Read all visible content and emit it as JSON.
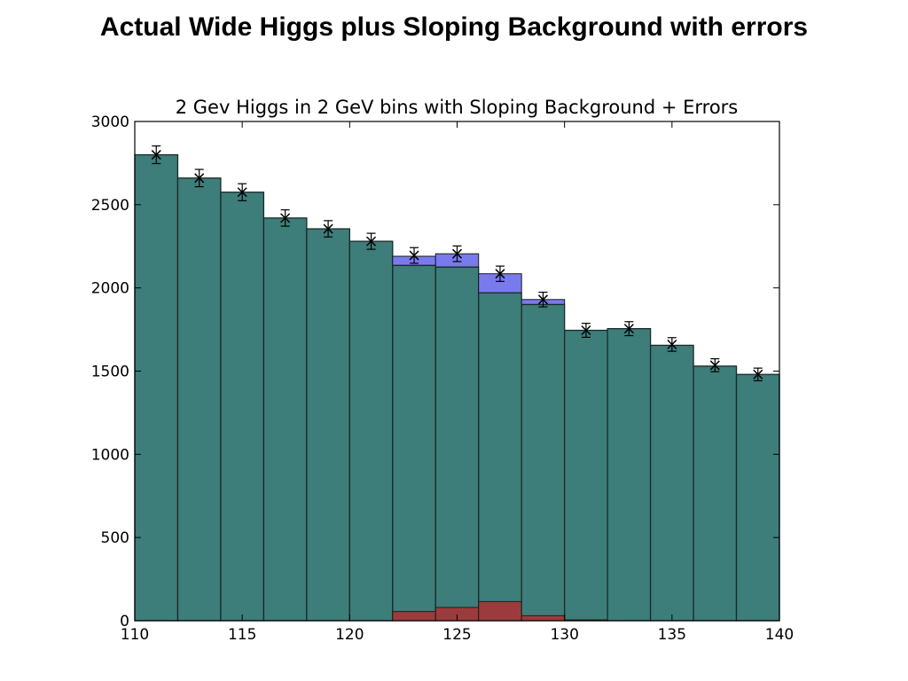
{
  "slide": {
    "title": "Actual Wide Higgs plus Sloping Background with errors"
  },
  "chart_data": {
    "type": "bar",
    "title": "2 Gev Higgs in 2 GeV bins with Sloping Background + Errors",
    "xlabel": "",
    "ylabel": "",
    "xlim": [
      110,
      140
    ],
    "ylim": [
      0,
      3000
    ],
    "xticks": [
      110,
      115,
      120,
      125,
      130,
      135,
      140
    ],
    "yticks": [
      0,
      500,
      1000,
      1500,
      2000,
      2500,
      3000
    ],
    "bin_edges": [
      110,
      112,
      114,
      116,
      118,
      120,
      122,
      124,
      126,
      128,
      130,
      132,
      134,
      136,
      138,
      140
    ],
    "grid": false,
    "series": [
      {
        "values": [
          2800,
          2660,
          2575,
          2420,
          2355,
          2280,
          2135,
          2125,
          1970,
          1900,
          1745,
          1755,
          1655,
          1530,
          1480
        ]
      },
      {
        "values": [
          2800,
          2660,
          2575,
          2420,
          2355,
          2280,
          2190,
          2205,
          2085,
          1930,
          1745,
          1755,
          1655,
          1530,
          1480
        ]
      },
      {
        "values": [
          0,
          0,
          0,
          0,
          0,
          0,
          55,
          80,
          115,
          30,
          5,
          0,
          0,
          0,
          0
        ]
      },
      {
        "x": [
          111,
          113,
          115,
          117,
          119,
          121,
          123,
          125,
          127,
          129,
          131,
          133,
          135,
          137,
          139
        ],
        "values": [
          2800,
          2660,
          2575,
          2420,
          2355,
          2280,
          2195,
          2205,
          2085,
          1930,
          1745,
          1755,
          1660,
          1535,
          1480
        ],
        "errors": [
          53,
          52,
          51,
          49,
          49,
          48,
          47,
          47,
          46,
          44,
          42,
          42,
          41,
          39,
          38
        ]
      }
    ],
    "colors": {
      "background": "#3d7d7a",
      "background_plus_signal": "#7a7aef",
      "signal": "#9b3b3b",
      "data_marker": "#000000"
    }
  }
}
